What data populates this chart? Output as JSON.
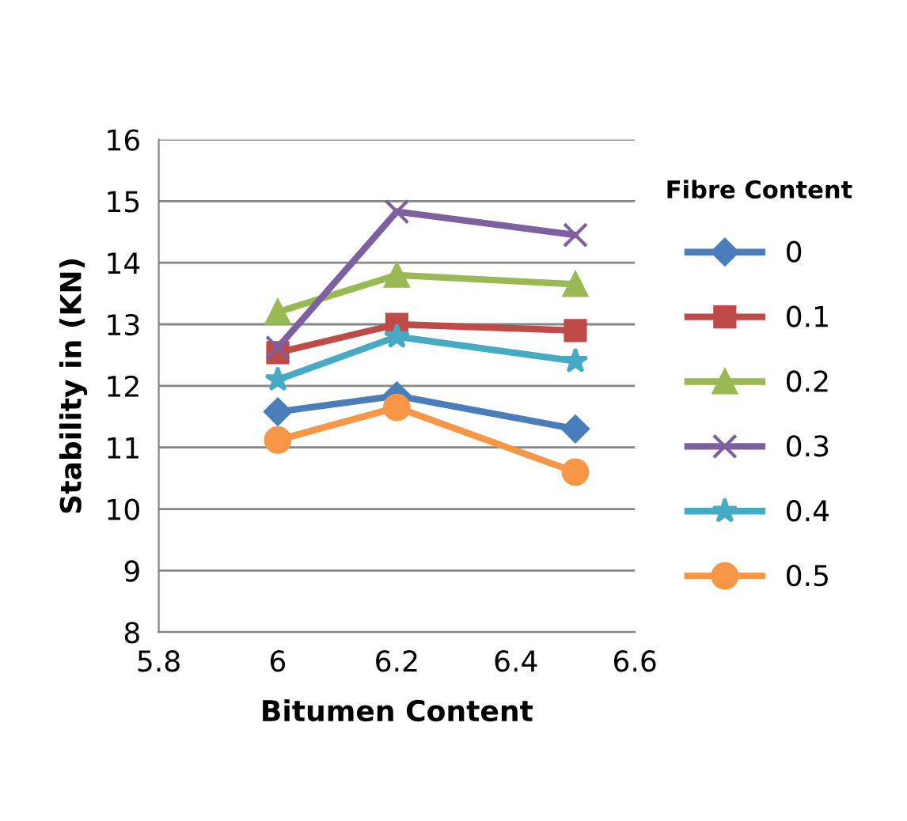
{
  "chart_data": {
    "type": "line",
    "xlabel": "Bitumen Content",
    "ylabel": "Stability in (KN)",
    "legend_title": "Fibre Content",
    "legend": "right",
    "grid": "y",
    "xlim": [
      5.8,
      6.6
    ],
    "xticks": [
      5.8,
      6,
      6.2,
      6.4,
      6.6
    ],
    "ylim": [
      8,
      16
    ],
    "yticks": [
      8,
      9,
      10,
      11,
      12,
      13,
      14,
      15,
      16
    ],
    "x": [
      6,
      6.2,
      6.5
    ],
    "series": [
      {
        "name": "0",
        "color": "#4a7ebb",
        "marker": "diamond",
        "values": [
          11.58,
          11.84,
          11.3
        ]
      },
      {
        "name": "0.1",
        "color": "#be4b48",
        "marker": "square",
        "values": [
          12.54,
          13.0,
          12.9
        ]
      },
      {
        "name": "0.2",
        "color": "#98b954",
        "marker": "triangle",
        "values": [
          13.2,
          13.8,
          13.65
        ]
      },
      {
        "name": "0.3",
        "color": "#7d60a0",
        "marker": "cross",
        "values": [
          12.62,
          14.83,
          14.45
        ]
      },
      {
        "name": "0.4",
        "color": "#46aac5",
        "marker": "star",
        "values": [
          12.1,
          12.8,
          12.4
        ]
      },
      {
        "name": "0.5",
        "color": "#f79646",
        "marker": "circle",
        "values": [
          11.12,
          11.65,
          10.6
        ]
      }
    ]
  }
}
